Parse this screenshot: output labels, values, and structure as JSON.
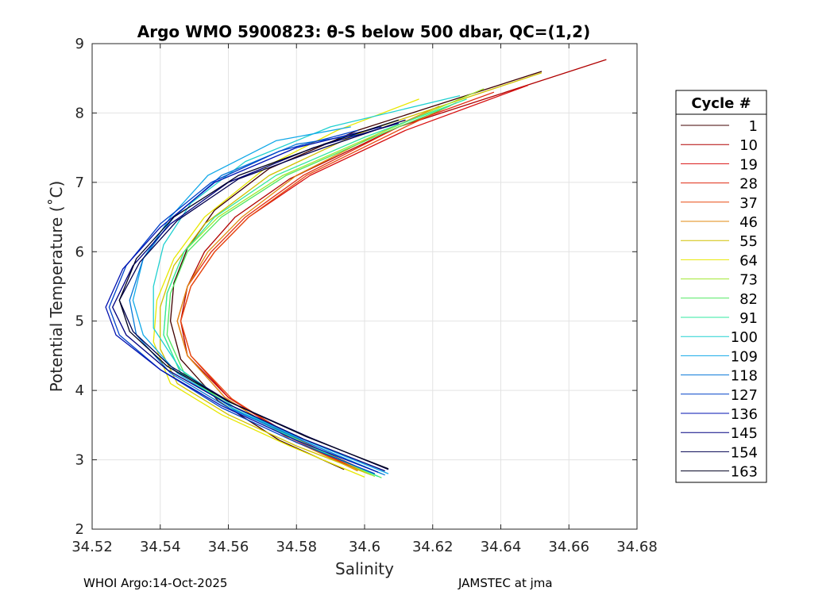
{
  "chart_data": {
    "type": "line",
    "title": "Argo WMO 5900823: θ-S below 500 dbar,  QC=(1,2)",
    "xlabel": "Salinity",
    "ylabel": "Potential Temperature (˚C)",
    "xlim": [
      34.52,
      34.68
    ],
    "ylim": [
      2,
      9
    ],
    "xticks": [
      "34.52",
      "34.54",
      "34.56",
      "34.58",
      "34.6",
      "34.62",
      "34.64",
      "34.66",
      "34.68"
    ],
    "yticks": [
      "2",
      "3",
      "4",
      "5",
      "6",
      "7",
      "8",
      "9"
    ],
    "grid": true,
    "legend": {
      "title": "Cycle #",
      "placement": "outside-right",
      "entries": [
        {
          "label": "1",
          "color": "#400000"
        },
        {
          "label": "10",
          "color": "#b00000"
        },
        {
          "label": "19",
          "color": "#d81010"
        },
        {
          "label": "28",
          "color": "#e02a10"
        },
        {
          "label": "37",
          "color": "#e84a10"
        },
        {
          "label": "46",
          "color": "#e08a10"
        },
        {
          "label": "55",
          "color": "#d0c000"
        },
        {
          "label": "64",
          "color": "#e8e800"
        },
        {
          "label": "73",
          "color": "#a0e830"
        },
        {
          "label": "82",
          "color": "#50e860"
        },
        {
          "label": "91",
          "color": "#30e8a0"
        },
        {
          "label": "100",
          "color": "#20d0d0"
        },
        {
          "label": "109",
          "color": "#10a8e8"
        },
        {
          "label": "118",
          "color": "#0878d8"
        },
        {
          "label": "127",
          "color": "#0040c8"
        },
        {
          "label": "136",
          "color": "#0010b0"
        },
        {
          "label": "145",
          "color": "#000080"
        },
        {
          "label": "154",
          "color": "#000050"
        },
        {
          "label": "163",
          "color": "#000020"
        }
      ]
    },
    "series": [
      {
        "cycle": "1",
        "color": "#400000",
        "points": [
          [
            34.594,
            2.86
          ],
          [
            34.575,
            3.28
          ],
          [
            34.557,
            3.85
          ],
          [
            34.546,
            4.45
          ],
          [
            34.543,
            5.0
          ],
          [
            34.544,
            5.55
          ],
          [
            34.548,
            6.05
          ],
          [
            34.556,
            6.6
          ],
          [
            34.572,
            7.2
          ],
          [
            34.598,
            7.75
          ],
          [
            34.652,
            8.6
          ]
        ]
      },
      {
        "cycle": "10",
        "color": "#b00000",
        "points": [
          [
            34.6,
            2.85
          ],
          [
            34.58,
            3.3
          ],
          [
            34.56,
            3.9
          ],
          [
            34.548,
            4.5
          ],
          [
            34.546,
            5.0
          ],
          [
            34.548,
            5.5
          ],
          [
            34.553,
            6.0
          ],
          [
            34.562,
            6.5
          ],
          [
            34.578,
            7.05
          ],
          [
            34.61,
            7.8
          ],
          [
            34.671,
            8.77
          ]
        ]
      },
      {
        "cycle": "19",
        "color": "#d81010",
        "points": [
          [
            34.598,
            2.85
          ],
          [
            34.579,
            3.3
          ],
          [
            34.56,
            3.9
          ],
          [
            34.549,
            4.5
          ],
          [
            34.546,
            5.0
          ],
          [
            34.549,
            5.5
          ],
          [
            34.556,
            6.0
          ],
          [
            34.566,
            6.5
          ],
          [
            34.584,
            7.1
          ],
          [
            34.612,
            7.75
          ],
          [
            34.648,
            8.4
          ]
        ]
      },
      {
        "cycle": "28",
        "color": "#e02a10",
        "points": [
          [
            34.597,
            2.87
          ],
          [
            34.578,
            3.3
          ],
          [
            34.559,
            3.9
          ],
          [
            34.548,
            4.5
          ],
          [
            34.545,
            5.0
          ],
          [
            34.548,
            5.5
          ],
          [
            34.555,
            6.0
          ],
          [
            34.565,
            6.5
          ],
          [
            34.582,
            7.1
          ],
          [
            34.61,
            7.8
          ],
          [
            34.638,
            8.3
          ]
        ]
      },
      {
        "cycle": "37",
        "color": "#e84a10",
        "points": [
          [
            34.6,
            2.82
          ],
          [
            34.58,
            3.28
          ],
          [
            34.561,
            3.88
          ],
          [
            34.549,
            4.5
          ],
          [
            34.546,
            5.0
          ],
          [
            34.549,
            5.5
          ],
          [
            34.556,
            6.0
          ],
          [
            34.566,
            6.5
          ],
          [
            34.583,
            7.1
          ],
          [
            34.612,
            7.8
          ],
          [
            34.627,
            8.15
          ]
        ]
      },
      {
        "cycle": "46",
        "color": "#e08a10",
        "points": [
          [
            34.598,
            2.84
          ],
          [
            34.578,
            3.3
          ],
          [
            34.559,
            3.9
          ],
          [
            34.548,
            4.5
          ],
          [
            34.545,
            5.0
          ],
          [
            34.548,
            5.5
          ],
          [
            34.554,
            6.0
          ],
          [
            34.564,
            6.5
          ],
          [
            34.58,
            7.1
          ],
          [
            34.604,
            7.7
          ],
          [
            34.622,
            8.1
          ]
        ]
      },
      {
        "cycle": "55",
        "color": "#d0c000",
        "points": [
          [
            34.602,
            2.78
          ],
          [
            34.58,
            3.2
          ],
          [
            34.56,
            3.65
          ],
          [
            34.545,
            4.1
          ],
          [
            34.54,
            4.6
          ],
          [
            34.54,
            5.2
          ],
          [
            34.544,
            5.8
          ],
          [
            34.553,
            6.4
          ],
          [
            34.572,
            7.1
          ],
          [
            34.598,
            7.7
          ],
          [
            34.652,
            8.58
          ]
        ]
      },
      {
        "cycle": "64",
        "color": "#e8e800",
        "points": [
          [
            34.6,
            2.75
          ],
          [
            34.578,
            3.2
          ],
          [
            34.558,
            3.65
          ],
          [
            34.543,
            4.1
          ],
          [
            34.538,
            4.7
          ],
          [
            34.539,
            5.3
          ],
          [
            34.544,
            5.9
          ],
          [
            34.553,
            6.5
          ],
          [
            34.572,
            7.25
          ],
          [
            34.592,
            7.75
          ],
          [
            34.616,
            8.2
          ]
        ]
      },
      {
        "cycle": "73",
        "color": "#a0e830",
        "points": [
          [
            34.603,
            2.76
          ],
          [
            34.582,
            3.25
          ],
          [
            34.561,
            3.75
          ],
          [
            34.546,
            4.25
          ],
          [
            34.541,
            4.8
          ],
          [
            34.542,
            5.4
          ],
          [
            34.547,
            6.0
          ],
          [
            34.557,
            6.5
          ],
          [
            34.576,
            7.1
          ],
          [
            34.604,
            7.7
          ],
          [
            34.635,
            8.35
          ]
        ]
      },
      {
        "cycle": "82",
        "color": "#50e860",
        "points": [
          [
            34.605,
            2.74
          ],
          [
            34.583,
            3.22
          ],
          [
            34.562,
            3.72
          ],
          [
            34.547,
            4.25
          ],
          [
            34.542,
            4.8
          ],
          [
            34.543,
            5.4
          ],
          [
            34.548,
            6.0
          ],
          [
            34.558,
            6.5
          ],
          [
            34.577,
            7.1
          ],
          [
            34.605,
            7.7
          ],
          [
            34.625,
            8.1
          ]
        ]
      },
      {
        "cycle": "91",
        "color": "#30e8a0",
        "points": [
          [
            34.604,
            2.76
          ],
          [
            34.582,
            3.24
          ],
          [
            34.561,
            3.75
          ],
          [
            34.546,
            4.25
          ],
          [
            34.541,
            4.8
          ],
          [
            34.542,
            5.4
          ],
          [
            34.547,
            6.0
          ],
          [
            34.556,
            6.5
          ],
          [
            34.574,
            7.1
          ],
          [
            34.6,
            7.65
          ],
          [
            34.63,
            8.2
          ]
        ]
      },
      {
        "cycle": "100",
        "color": "#20d0d0",
        "points": [
          [
            34.605,
            2.8
          ],
          [
            34.583,
            3.25
          ],
          [
            34.562,
            3.75
          ],
          [
            34.546,
            4.3
          ],
          [
            34.538,
            4.9
          ],
          [
            34.538,
            5.5
          ],
          [
            34.541,
            6.1
          ],
          [
            34.549,
            6.7
          ],
          [
            34.565,
            7.3
          ],
          [
            34.59,
            7.8
          ],
          [
            34.628,
            8.25
          ]
        ]
      },
      {
        "cycle": "109",
        "color": "#10a8e8",
        "points": [
          [
            34.607,
            2.8
          ],
          [
            34.584,
            3.25
          ],
          [
            34.562,
            3.72
          ],
          [
            34.545,
            4.25
          ],
          [
            34.535,
            4.8
          ],
          [
            34.532,
            5.3
          ],
          [
            34.535,
            5.9
          ],
          [
            34.543,
            6.5
          ],
          [
            34.554,
            7.1
          ],
          [
            34.574,
            7.6
          ],
          [
            34.596,
            7.8
          ]
        ]
      },
      {
        "cycle": "118",
        "color": "#0878d8",
        "points": [
          [
            34.606,
            2.78
          ],
          [
            34.583,
            3.25
          ],
          [
            34.56,
            3.75
          ],
          [
            34.543,
            4.25
          ],
          [
            34.533,
            4.8
          ],
          [
            34.531,
            5.3
          ],
          [
            34.535,
            5.9
          ],
          [
            34.544,
            6.5
          ],
          [
            34.558,
            7.1
          ],
          [
            34.58,
            7.55
          ],
          [
            34.6,
            7.7
          ]
        ]
      },
      {
        "cycle": "127",
        "color": "#0040c8",
        "points": [
          [
            34.603,
            2.8
          ],
          [
            34.58,
            3.25
          ],
          [
            34.558,
            3.75
          ],
          [
            34.54,
            4.3
          ],
          [
            34.528,
            4.8
          ],
          [
            34.525,
            5.2
          ],
          [
            34.53,
            5.8
          ],
          [
            34.54,
            6.4
          ],
          [
            34.555,
            7.0
          ],
          [
            34.575,
            7.45
          ],
          [
            34.598,
            7.75
          ]
        ]
      },
      {
        "cycle": "136",
        "color": "#0010b0",
        "points": [
          [
            34.604,
            2.82
          ],
          [
            34.58,
            3.28
          ],
          [
            34.558,
            3.78
          ],
          [
            34.54,
            4.3
          ],
          [
            34.527,
            4.8
          ],
          [
            34.524,
            5.2
          ],
          [
            34.529,
            5.75
          ],
          [
            34.54,
            6.35
          ],
          [
            34.556,
            7.0
          ],
          [
            34.58,
            7.5
          ],
          [
            34.605,
            7.8
          ]
        ]
      },
      {
        "cycle": "145",
        "color": "#000080",
        "points": [
          [
            34.606,
            2.84
          ],
          [
            34.582,
            3.3
          ],
          [
            34.56,
            3.8
          ],
          [
            34.542,
            4.3
          ],
          [
            34.53,
            4.8
          ],
          [
            34.526,
            5.2
          ],
          [
            34.532,
            5.8
          ],
          [
            34.543,
            6.4
          ],
          [
            34.56,
            7.0
          ],
          [
            34.585,
            7.5
          ],
          [
            34.61,
            7.85
          ]
        ]
      },
      {
        "cycle": "154",
        "color": "#000050",
        "points": [
          [
            34.607,
            2.86
          ],
          [
            34.584,
            3.32
          ],
          [
            34.561,
            3.82
          ],
          [
            34.543,
            4.35
          ],
          [
            34.532,
            4.85
          ],
          [
            34.528,
            5.3
          ],
          [
            34.534,
            5.85
          ],
          [
            34.545,
            6.45
          ],
          [
            34.563,
            7.05
          ],
          [
            34.588,
            7.5
          ],
          [
            34.612,
            7.9
          ]
        ]
      },
      {
        "cycle": "163",
        "color": "#000020",
        "points": [
          [
            34.607,
            2.87
          ],
          [
            34.583,
            3.33
          ],
          [
            34.56,
            3.84
          ],
          [
            34.542,
            4.35
          ],
          [
            34.531,
            4.85
          ],
          [
            34.528,
            5.3
          ],
          [
            34.533,
            5.9
          ],
          [
            34.544,
            6.5
          ],
          [
            34.563,
            7.1
          ],
          [
            34.588,
            7.55
          ],
          [
            34.61,
            7.9
          ]
        ]
      }
    ]
  },
  "footer": {
    "left": "WHOI Argo:14-Oct-2025",
    "right": "JAMSTEC at jma"
  }
}
